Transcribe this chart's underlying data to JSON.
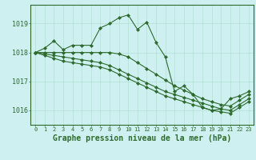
{
  "background_color": "#cff0f0",
  "grid_color": "#aaddcc",
  "line_color": "#2d6a2d",
  "title": "Graphe pression niveau de la mer (hPa)",
  "ylim": [
    1015.5,
    1019.65
  ],
  "xlim": [
    -0.5,
    23.5
  ],
  "yticks": [
    1016,
    1017,
    1018,
    1019
  ],
  "xticks": [
    0,
    1,
    2,
    3,
    4,
    5,
    6,
    7,
    8,
    9,
    10,
    11,
    12,
    13,
    14,
    15,
    16,
    17,
    18,
    19,
    20,
    21,
    22,
    23
  ],
  "series": [
    {
      "x": [
        0,
        1,
        2,
        3,
        4,
        5,
        6,
        7,
        8,
        9,
        10,
        11,
        12,
        13,
        14,
        15,
        16,
        17,
        18,
        19,
        20,
        21,
        22,
        23
      ],
      "y": [
        1018.0,
        1018.15,
        1018.4,
        1018.1,
        1018.25,
        1018.25,
        1018.25,
        1018.85,
        1019.0,
        1019.2,
        1019.3,
        1018.8,
        1019.05,
        1018.35,
        1017.85,
        1016.65,
        1016.85,
        1016.55,
        1016.1,
        1016.0,
        1016.05,
        1016.4,
        1016.5,
        1016.65
      ],
      "marker": "D",
      "markersize": 2.2,
      "linewidth": 0.8
    },
    {
      "x": [
        0,
        1,
        2,
        3,
        4,
        5,
        6,
        7,
        8,
        9,
        10,
        11,
        12,
        13,
        14,
        15,
        16,
        17,
        18,
        19,
        20,
        21,
        22,
        23
      ],
      "y": [
        1018.0,
        1018.0,
        1018.0,
        1018.0,
        1018.0,
        1018.0,
        1018.0,
        1018.0,
        1018.0,
        1017.95,
        1017.85,
        1017.65,
        1017.45,
        1017.25,
        1017.05,
        1016.85,
        1016.7,
        1016.55,
        1016.4,
        1016.3,
        1016.2,
        1016.15,
        1016.35,
        1016.55
      ],
      "marker": "D",
      "markersize": 2.2,
      "linewidth": 0.8
    },
    {
      "x": [
        0,
        1,
        2,
        3,
        4,
        5,
        6,
        7,
        8,
        9,
        10,
        11,
        12,
        13,
        14,
        15,
        16,
        17,
        18,
        19,
        20,
        21,
        22,
        23
      ],
      "y": [
        1018.0,
        1017.95,
        1017.9,
        1017.85,
        1017.8,
        1017.75,
        1017.7,
        1017.65,
        1017.55,
        1017.4,
        1017.25,
        1017.1,
        1016.95,
        1016.8,
        1016.65,
        1016.55,
        1016.45,
        1016.35,
        1016.25,
        1016.15,
        1016.05,
        1016.0,
        1016.2,
        1016.4
      ],
      "marker": "D",
      "markersize": 2.2,
      "linewidth": 0.8
    },
    {
      "x": [
        0,
        1,
        2,
        3,
        4,
        5,
        6,
        7,
        8,
        9,
        10,
        11,
        12,
        13,
        14,
        15,
        16,
        17,
        18,
        19,
        20,
        21,
        22,
        23
      ],
      "y": [
        1018.0,
        1017.9,
        1017.8,
        1017.7,
        1017.65,
        1017.6,
        1017.55,
        1017.5,
        1017.4,
        1017.25,
        1017.1,
        1016.95,
        1016.8,
        1016.65,
        1016.5,
        1016.4,
        1016.3,
        1016.2,
        1016.1,
        1016.0,
        1015.95,
        1015.9,
        1016.1,
        1016.3
      ],
      "marker": "D",
      "markersize": 2.2,
      "linewidth": 0.8
    }
  ]
}
